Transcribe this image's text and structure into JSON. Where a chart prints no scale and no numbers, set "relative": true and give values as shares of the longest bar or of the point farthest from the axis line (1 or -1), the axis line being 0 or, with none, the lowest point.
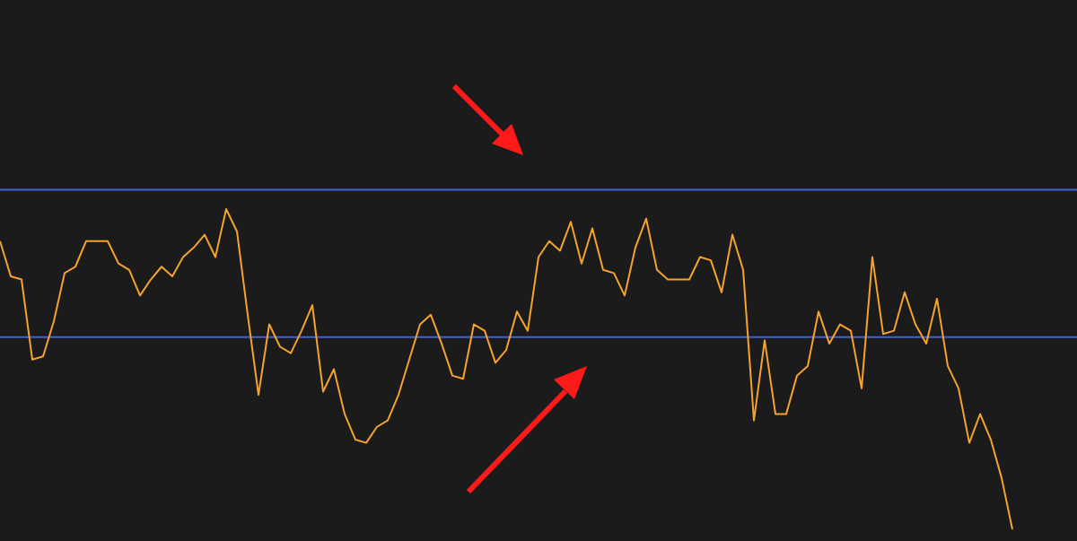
{
  "chart_data": {
    "type": "line",
    "relative": true,
    "categories": [
      null,
      null,
      null,
      null,
      null,
      null,
      null,
      null,
      null,
      null,
      null,
      null,
      null,
      null,
      null,
      null,
      null,
      null,
      null,
      null,
      null,
      null,
      null,
      null,
      null,
      null,
      null,
      null,
      null,
      null,
      null,
      null,
      null,
      null,
      null,
      null,
      null,
      null,
      null,
      null,
      null,
      null,
      null,
      null,
      null,
      null,
      null,
      null,
      null,
      null,
      null,
      null,
      null,
      null,
      null,
      null,
      null,
      null,
      null,
      null,
      null,
      null,
      null,
      null,
      null,
      null,
      null,
      null,
      null,
      null,
      null,
      null,
      null,
      null,
      null,
      null,
      null,
      null,
      null,
      null,
      null,
      null,
      null,
      null,
      null,
      null,
      null,
      null,
      null,
      null,
      null,
      null,
      null,
      null,
      null,
      null,
      null,
      null,
      null,
      null,
      null
    ],
    "series": [
      {
        "color": "#f5a32e",
        "values": [
          0.9,
          0.79,
          0.78,
          0.53,
          0.54,
          0.65,
          0.8,
          0.82,
          0.9,
          0.9,
          0.9,
          0.83,
          0.81,
          0.73,
          0.78,
          0.82,
          0.79,
          0.85,
          0.88,
          0.92,
          0.85,
          1,
          0.93,
          0.67,
          0.42,
          0.64,
          0.57,
          0.55,
          0.62,
          0.7,
          0.43,
          0.5,
          0.36,
          0.28,
          0.27,
          0.32,
          0.34,
          0.42,
          0.53,
          0.64,
          0.67,
          0.58,
          0.48,
          0.47,
          0.64,
          0.62,
          0.52,
          0.56,
          0.68,
          0.62,
          0.85,
          0.9,
          0.87,
          0.96,
          0.83,
          0.94,
          0.81,
          0.8,
          0.73,
          0.88,
          0.97,
          0.81,
          0.78,
          0.78,
          0.78,
          0.85,
          0.84,
          0.74,
          0.92,
          0.81,
          0.34,
          0.59,
          0.36,
          0.36,
          0.48,
          0.51,
          0.68,
          0.58,
          0.64,
          0.62,
          0.44,
          0.85,
          0.61,
          0.62,
          0.74,
          0.64,
          0.58,
          0.72,
          0.51,
          0.44,
          0.27,
          0.36,
          0.28,
          0.16,
          0,
          null,
          null,
          null,
          null,
          null,
          null
        ]
      }
    ],
    "ref_lines": [
      {
        "axis": "y",
        "value": 1.06,
        "color": "#3d63d6"
      },
      {
        "axis": "y",
        "value": 0.6,
        "color": "#3d63d6"
      }
    ],
    "legend": false,
    "marker": "none",
    "line_style": "solid"
  }
}
